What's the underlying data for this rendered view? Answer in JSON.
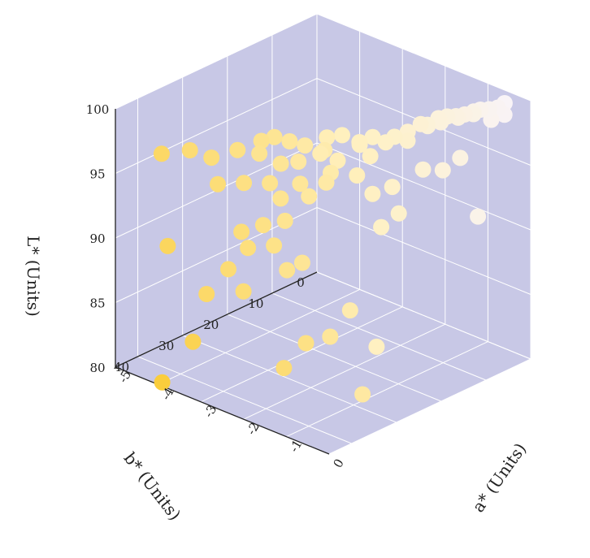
{
  "chart_data": {
    "type": "scatter3d",
    "title": "",
    "axes": {
      "x": {
        "label": "a* (Units)",
        "range": [
          0,
          -5
        ],
        "ticks": [
          "0",
          "-1",
          "-2",
          "-3",
          "-4",
          "-5"
        ]
      },
      "y": {
        "label": "b* (Units)",
        "range": [
          0,
          45
        ],
        "ticks": [
          "0",
          "10",
          "20",
          "30",
          "40"
        ]
      },
      "z": {
        "label": "L* (Units)",
        "range": [
          80,
          100
        ],
        "ticks": [
          "80",
          "85",
          "90",
          "95",
          "100"
        ]
      }
    },
    "grid": true,
    "background": {
      "pane": "#c8c8e6",
      "grid": "#ffffff"
    },
    "colormap": "white-to-yellow by b*",
    "points": [
      {
        "a": -0.4,
        "b": 2.0,
        "L": 99.6
      },
      {
        "a": -0.4,
        "b": 3.5,
        "L": 99.5
      },
      {
        "a": -0.5,
        "b": 4.5,
        "L": 99.4
      },
      {
        "a": -0.6,
        "b": 5.5,
        "L": 99.4
      },
      {
        "a": -0.6,
        "b": 7.0,
        "L": 99.5
      },
      {
        "a": -0.5,
        "b": 8.0,
        "L": 99.6
      },
      {
        "a": -0.6,
        "b": 9.0,
        "L": 99.6
      },
      {
        "a": -0.7,
        "b": 10.0,
        "L": 99.5
      },
      {
        "a": -0.8,
        "b": 11.0,
        "L": 99.5
      },
      {
        "a": -0.9,
        "b": 12.0,
        "L": 99.4
      },
      {
        "a": -1.0,
        "b": 13.5,
        "L": 99.0
      },
      {
        "a": -0.3,
        "b": 3.0,
        "L": 99.0
      },
      {
        "a": -0.4,
        "b": 5.0,
        "L": 98.8
      },
      {
        "a": -0.7,
        "b": 9.5,
        "L": 99.3
      },
      {
        "a": -0.9,
        "b": 11.5,
        "L": 99.0
      },
      {
        "a": -1.1,
        "b": 12.5,
        "L": 98.6
      },
      {
        "a": -1.0,
        "b": 15.0,
        "L": 99.3
      },
      {
        "a": -1.2,
        "b": 16.0,
        "L": 98.6
      },
      {
        "a": -1.3,
        "b": 18.0,
        "L": 98.4
      },
      {
        "a": -1.1,
        "b": 17.0,
        "L": 98.2
      },
      {
        "a": -1.4,
        "b": 19.0,
        "L": 98.0
      },
      {
        "a": -1.6,
        "b": 20.0,
        "L": 98.3
      },
      {
        "a": -1.7,
        "b": 22.0,
        "L": 98.1
      },
      {
        "a": -2.0,
        "b": 23.0,
        "L": 98.4
      },
      {
        "a": -2.2,
        "b": 24.5,
        "L": 98.2
      },
      {
        "a": -1.8,
        "b": 21.0,
        "L": 97.6
      },
      {
        "a": -1.5,
        "b": 21.5,
        "L": 97.2
      },
      {
        "a": -2.1,
        "b": 26.0,
        "L": 97.6
      },
      {
        "a": -2.4,
        "b": 27.5,
        "L": 97.8
      },
      {
        "a": -2.6,
        "b": 29.0,
        "L": 98.1
      },
      {
        "a": -2.8,
        "b": 30.5,
        "L": 98.4
      },
      {
        "a": -3.0,
        "b": 31.5,
        "L": 98.0
      },
      {
        "a": -2.3,
        "b": 25.0,
        "L": 96.9
      },
      {
        "a": -2.0,
        "b": 24.0,
        "L": 96.6
      },
      {
        "a": -1.9,
        "b": 26.5,
        "L": 96.2
      },
      {
        "a": -2.5,
        "b": 28.0,
        "L": 96.5
      },
      {
        "a": -2.7,
        "b": 30.0,
        "L": 96.4
      },
      {
        "a": -3.1,
        "b": 31.0,
        "L": 96.8
      },
      {
        "a": -3.4,
        "b": 33.0,
        "L": 97.0
      },
      {
        "a": -3.8,
        "b": 35.0,
        "L": 96.2
      },
      {
        "a": -4.2,
        "b": 36.0,
        "L": 96.4
      },
      {
        "a": -4.6,
        "b": 38.5,
        "L": 96.0
      },
      {
        "a": -1.6,
        "b": 23.5,
        "L": 95.9
      },
      {
        "a": -1.9,
        "b": 27.5,
        "L": 95.6
      },
      {
        "a": -2.3,
        "b": 29.5,
        "L": 95.3
      },
      {
        "a": -2.8,
        "b": 31.5,
        "L": 95.0
      },
      {
        "a": -3.2,
        "b": 33.5,
        "L": 94.8
      },
      {
        "a": -3.6,
        "b": 35.5,
        "L": 94.5
      },
      {
        "a": -2.2,
        "b": 28.5,
        "L": 94.3
      },
      {
        "a": -2.6,
        "b": 31.0,
        "L": 94.0
      },
      {
        "a": -0.8,
        "b": 12.0,
        "L": 95.5
      },
      {
        "a": -1.0,
        "b": 14.5,
        "L": 95.7
      },
      {
        "a": -0.6,
        "b": 10.0,
        "L": 96.4
      },
      {
        "a": -1.3,
        "b": 18.5,
        "L": 94.6
      },
      {
        "a": -1.5,
        "b": 21.0,
        "L": 94.2
      },
      {
        "a": -1.2,
        "b": 18.0,
        "L": 92.6
      },
      {
        "a": -1.4,
        "b": 20.0,
        "L": 91.6
      },
      {
        "a": -0.5,
        "b": 7.0,
        "L": 91.5
      },
      {
        "a": -2.5,
        "b": 31.0,
        "L": 92.4
      },
      {
        "a": -2.8,
        "b": 33.0,
        "L": 92.0
      },
      {
        "a": -3.1,
        "b": 35.0,
        "L": 91.4
      },
      {
        "a": -2.6,
        "b": 32.5,
        "L": 90.6
      },
      {
        "a": -3.0,
        "b": 34.5,
        "L": 90.2
      },
      {
        "a": -2.2,
        "b": 30.0,
        "L": 89.4
      },
      {
        "a": -2.4,
        "b": 31.5,
        "L": 88.8
      },
      {
        "a": -3.3,
        "b": 36.0,
        "L": 88.4
      },
      {
        "a": -3.0,
        "b": 35.5,
        "L": 87.0
      },
      {
        "a": -3.6,
        "b": 38.0,
        "L": 86.4
      },
      {
        "a": -4.3,
        "b": 40.0,
        "L": 89.5
      },
      {
        "a": -1.5,
        "b": 26.0,
        "L": 86.0
      },
      {
        "a": -1.6,
        "b": 29.5,
        "L": 84.4
      },
      {
        "a": -1.8,
        "b": 33.0,
        "L": 84.2
      },
      {
        "a": -3.5,
        "b": 42.0,
        "L": 83.5
      },
      {
        "a": -2.0,
        "b": 36.0,
        "L": 82.5
      },
      {
        "a": -3.8,
        "b": 46.0,
        "L": 80.6
      },
      {
        "a": -1.3,
        "b": 22.0,
        "L": 82.8
      },
      {
        "a": -1.0,
        "b": 28.0,
        "L": 80.5
      }
    ]
  }
}
